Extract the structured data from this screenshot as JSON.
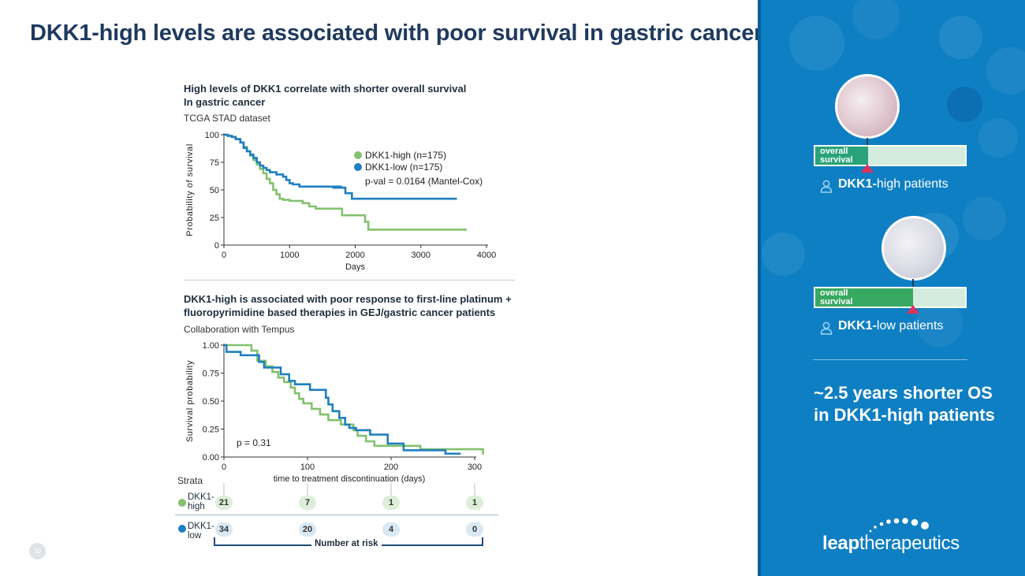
{
  "page_title": "DKK1-high levels are associated with poor survival in gastric cancer",
  "page_number": "10",
  "chart_data": [
    {
      "type": "line",
      "title": "High levels of DKK1 correlate with shorter overall survival",
      "title_line2": "In gastric cancer",
      "subtitle": "TCGA STAD dataset",
      "xlabel": "Days",
      "ylabel": "Probability of survival",
      "xlim": [
        0,
        4000
      ],
      "ylim": [
        0,
        100
      ],
      "xticks": [
        0,
        1000,
        2000,
        3000,
        4000
      ],
      "yticks": [
        0,
        25,
        50,
        75,
        100
      ],
      "legend_position": "top-right",
      "annotation": "p-val = 0.0164 (Mantel-Cox)",
      "series": [
        {
          "name": "DKK1-high (n=175)",
          "color": "#84c16f",
          "points": [
            [
              0,
              100
            ],
            [
              60,
              99
            ],
            [
              120,
              98
            ],
            [
              180,
              96
            ],
            [
              250,
              93
            ],
            [
              300,
              89
            ],
            [
              350,
              85
            ],
            [
              400,
              81
            ],
            [
              450,
              77
            ],
            [
              500,
              73
            ],
            [
              550,
              69
            ],
            [
              600,
              65
            ],
            [
              650,
              60
            ],
            [
              700,
              56
            ],
            [
              750,
              50
            ],
            [
              800,
              46
            ],
            [
              850,
              42
            ],
            [
              900,
              41
            ],
            [
              1000,
              40
            ],
            [
              1100,
              40
            ],
            [
              1200,
              38
            ],
            [
              1300,
              35
            ],
            [
              1400,
              33
            ],
            [
              1450,
              33
            ],
            [
              1700,
              33
            ],
            [
              1800,
              27
            ],
            [
              2100,
              27
            ],
            [
              2150,
              21
            ],
            [
              2200,
              14
            ],
            [
              3700,
              14
            ]
          ]
        },
        {
          "name": "DKK1-low (n=175)",
          "color": "#1f7fc0",
          "points": [
            [
              0,
              100
            ],
            [
              60,
              99
            ],
            [
              120,
              98
            ],
            [
              180,
              96
            ],
            [
              250,
              93
            ],
            [
              300,
              88
            ],
            [
              350,
              85
            ],
            [
              400,
              82
            ],
            [
              450,
              79
            ],
            [
              500,
              75
            ],
            [
              550,
              72
            ],
            [
              600,
              70
            ],
            [
              650,
              68
            ],
            [
              700,
              66
            ],
            [
              800,
              64
            ],
            [
              900,
              62
            ],
            [
              950,
              59
            ],
            [
              1000,
              56
            ],
            [
              1050,
              55
            ],
            [
              1100,
              55
            ],
            [
              1150,
              53
            ],
            [
              1200,
              53
            ],
            [
              1800,
              53
            ],
            [
              1750,
              53
            ],
            [
              1700,
              53
            ],
            [
              1750,
              52
            ],
            [
              1800,
              52
            ],
            [
              1700,
              52
            ],
            [
              1750,
              52
            ],
            [
              1700,
              52
            ],
            [
              1800,
              52
            ],
            [
              1700,
              52
            ],
            [
              1750,
              52
            ],
            [
              1700,
              52
            ],
            [
              1750,
              52
            ],
            [
              1800,
              52
            ],
            [
              1700,
              52
            ],
            [
              1750,
              52
            ],
            [
              1800,
              52
            ],
            [
              1650,
              52
            ],
            [
              1700,
              52
            ],
            [
              1750,
              52
            ],
            [
              1650,
              52
            ],
            [
              1700,
              52
            ],
            [
              1750,
              52
            ],
            [
              1850,
              52
            ],
            [
              1800,
              52
            ],
            [
              1850,
              52
            ],
            [
              1750,
              52
            ],
            [
              1700,
              52
            ],
            [
              1800,
              52
            ],
            [
              1850,
              52
            ],
            [
              1750,
              52
            ],
            [
              1700,
              52
            ],
            [
              1650,
              52
            ],
            [
              1800,
              52
            ],
            [
              1750,
              52
            ],
            [
              1800,
              52
            ],
            [
              1700,
              52
            ],
            [
              1850,
              52
            ],
            [
              1700,
              52
            ],
            [
              1650,
              52
            ],
            [
              1700,
              52
            ],
            [
              1750,
              52
            ],
            [
              1800,
              52
            ],
            [
              1850,
              52
            ],
            [
              1800,
              52
            ],
            [
              1750,
              52
            ],
            [
              1700,
              52
            ],
            [
              1650,
              52
            ],
            [
              1700,
              52
            ],
            [
              1750,
              52
            ],
            [
              1800,
              52
            ],
            [
              1850,
              52
            ],
            [
              1800,
              52
            ],
            [
              1750,
              52
            ],
            [
              1700,
              52
            ],
            [
              1650,
              52
            ],
            [
              1700,
              52
            ],
            [
              1800,
              52
            ],
            [
              1750,
              52
            ],
            [
              1800,
              52
            ],
            [
              1850,
              52
            ],
            [
              1850,
              47
            ],
            [
              1950,
              47
            ],
            [
              1950,
              42
            ],
            [
              3550,
              42
            ]
          ]
        }
      ]
    },
    {
      "type": "line",
      "title": "DKK1-high is associated with poor response to first-line platinum +",
      "title_line2": "fluoropyrimidine based therapies in GEJ/gastric cancer patients",
      "subtitle": "Collaboration with Tempus",
      "xlabel": "time to treatment discontinuation (days)",
      "ylabel": "Survival probability",
      "xlim": [
        0,
        300
      ],
      "ylim": [
        0,
        1
      ],
      "xticks": [
        0,
        100,
        200,
        300
      ],
      "yticks": [
        "0.00",
        "0.25",
        "0.50",
        "0.75",
        "1.00"
      ],
      "annotation": "p = 0.31",
      "series": [
        {
          "name": "DKK1-high",
          "color": "#84c16f",
          "points": [
            [
              0,
              1.0
            ],
            [
              33,
              1.0
            ],
            [
              33,
              0.95
            ],
            [
              40,
              0.95
            ],
            [
              40,
              0.86
            ],
            [
              50,
              0.81
            ],
            [
              58,
              0.76
            ],
            [
              65,
              0.71
            ],
            [
              72,
              0.67
            ],
            [
              80,
              0.62
            ],
            [
              85,
              0.57
            ],
            [
              90,
              0.52
            ],
            [
              95,
              0.48
            ],
            [
              105,
              0.43
            ],
            [
              115,
              0.38
            ],
            [
              125,
              0.33
            ],
            [
              140,
              0.29
            ],
            [
              155,
              0.24
            ],
            [
              160,
              0.19
            ],
            [
              170,
              0.14
            ],
            [
              180,
              0.1
            ],
            [
              230,
              0.1
            ],
            [
              235,
              0.07
            ],
            [
              310,
              0.07
            ],
            [
              310,
              0.02
            ]
          ]
        },
        {
          "name": "DKK1-low",
          "color": "#1f7fc0",
          "points": [
            [
              0,
              1.0
            ],
            [
              3,
              1.0
            ],
            [
              3,
              0.94
            ],
            [
              20,
              0.94
            ],
            [
              20,
              0.91
            ],
            [
              40,
              0.91
            ],
            [
              42,
              0.85
            ],
            [
              48,
              0.8
            ],
            [
              65,
              0.8
            ],
            [
              68,
              0.74
            ],
            [
              75,
              0.74
            ],
            [
              78,
              0.68
            ],
            [
              85,
              0.65
            ],
            [
              100,
              0.65
            ],
            [
              103,
              0.6
            ],
            [
              118,
              0.6
            ],
            [
              122,
              0.53
            ],
            [
              125,
              0.47
            ],
            [
              130,
              0.41
            ],
            [
              138,
              0.35
            ],
            [
              145,
              0.29
            ],
            [
              150,
              0.26
            ],
            [
              158,
              0.24
            ],
            [
              175,
              0.2
            ],
            [
              190,
              0.2
            ],
            [
              196,
              0.12
            ],
            [
              212,
              0.12
            ],
            [
              215,
              0.06
            ],
            [
              265,
              0.06
            ],
            [
              265,
              0.03
            ],
            [
              282,
              0.03
            ],
            [
              282,
              0.02
            ]
          ]
        }
      ],
      "strata_label": "Strata",
      "risk_table": {
        "caption": "Number at risk",
        "times": [
          0,
          100,
          200,
          300
        ],
        "rows": [
          {
            "label": "DKK1-high",
            "color": "#84c16f",
            "values": [
              "21",
              "7",
              "1",
              "1"
            ]
          },
          {
            "label": "DKK1-low",
            "color": "#1f7fc0",
            "values": [
              "34",
              "20",
              "4",
              "0"
            ]
          }
        ]
      }
    }
  ],
  "panel": {
    "high": {
      "bar_label": "overall survival",
      "bar_label_l1": "overall",
      "bar_label_l2": "survival",
      "os_fraction": 0.35,
      "patient_bold": "DKK1-",
      "patient_rest": "high patients",
      "fill_color": "#2aa37a"
    },
    "low": {
      "bar_label": "overall survival",
      "bar_label_l1": "overall",
      "bar_label_l2": "survival",
      "os_fraction": 0.65,
      "patient_bold": "DKK1-",
      "patient_rest": "low patients",
      "fill_color": "#37a85f"
    },
    "summary": "~2.5 years shorter OS in DKK1-high patients",
    "logo_bold": "leap",
    "logo_rest": "therapeutics"
  },
  "colors": {
    "high": "#84c16f",
    "low": "#1f7fc0",
    "title": "#1f3a5f",
    "panel_bg": "#0f7fc3",
    "marker": "#e0325a"
  }
}
